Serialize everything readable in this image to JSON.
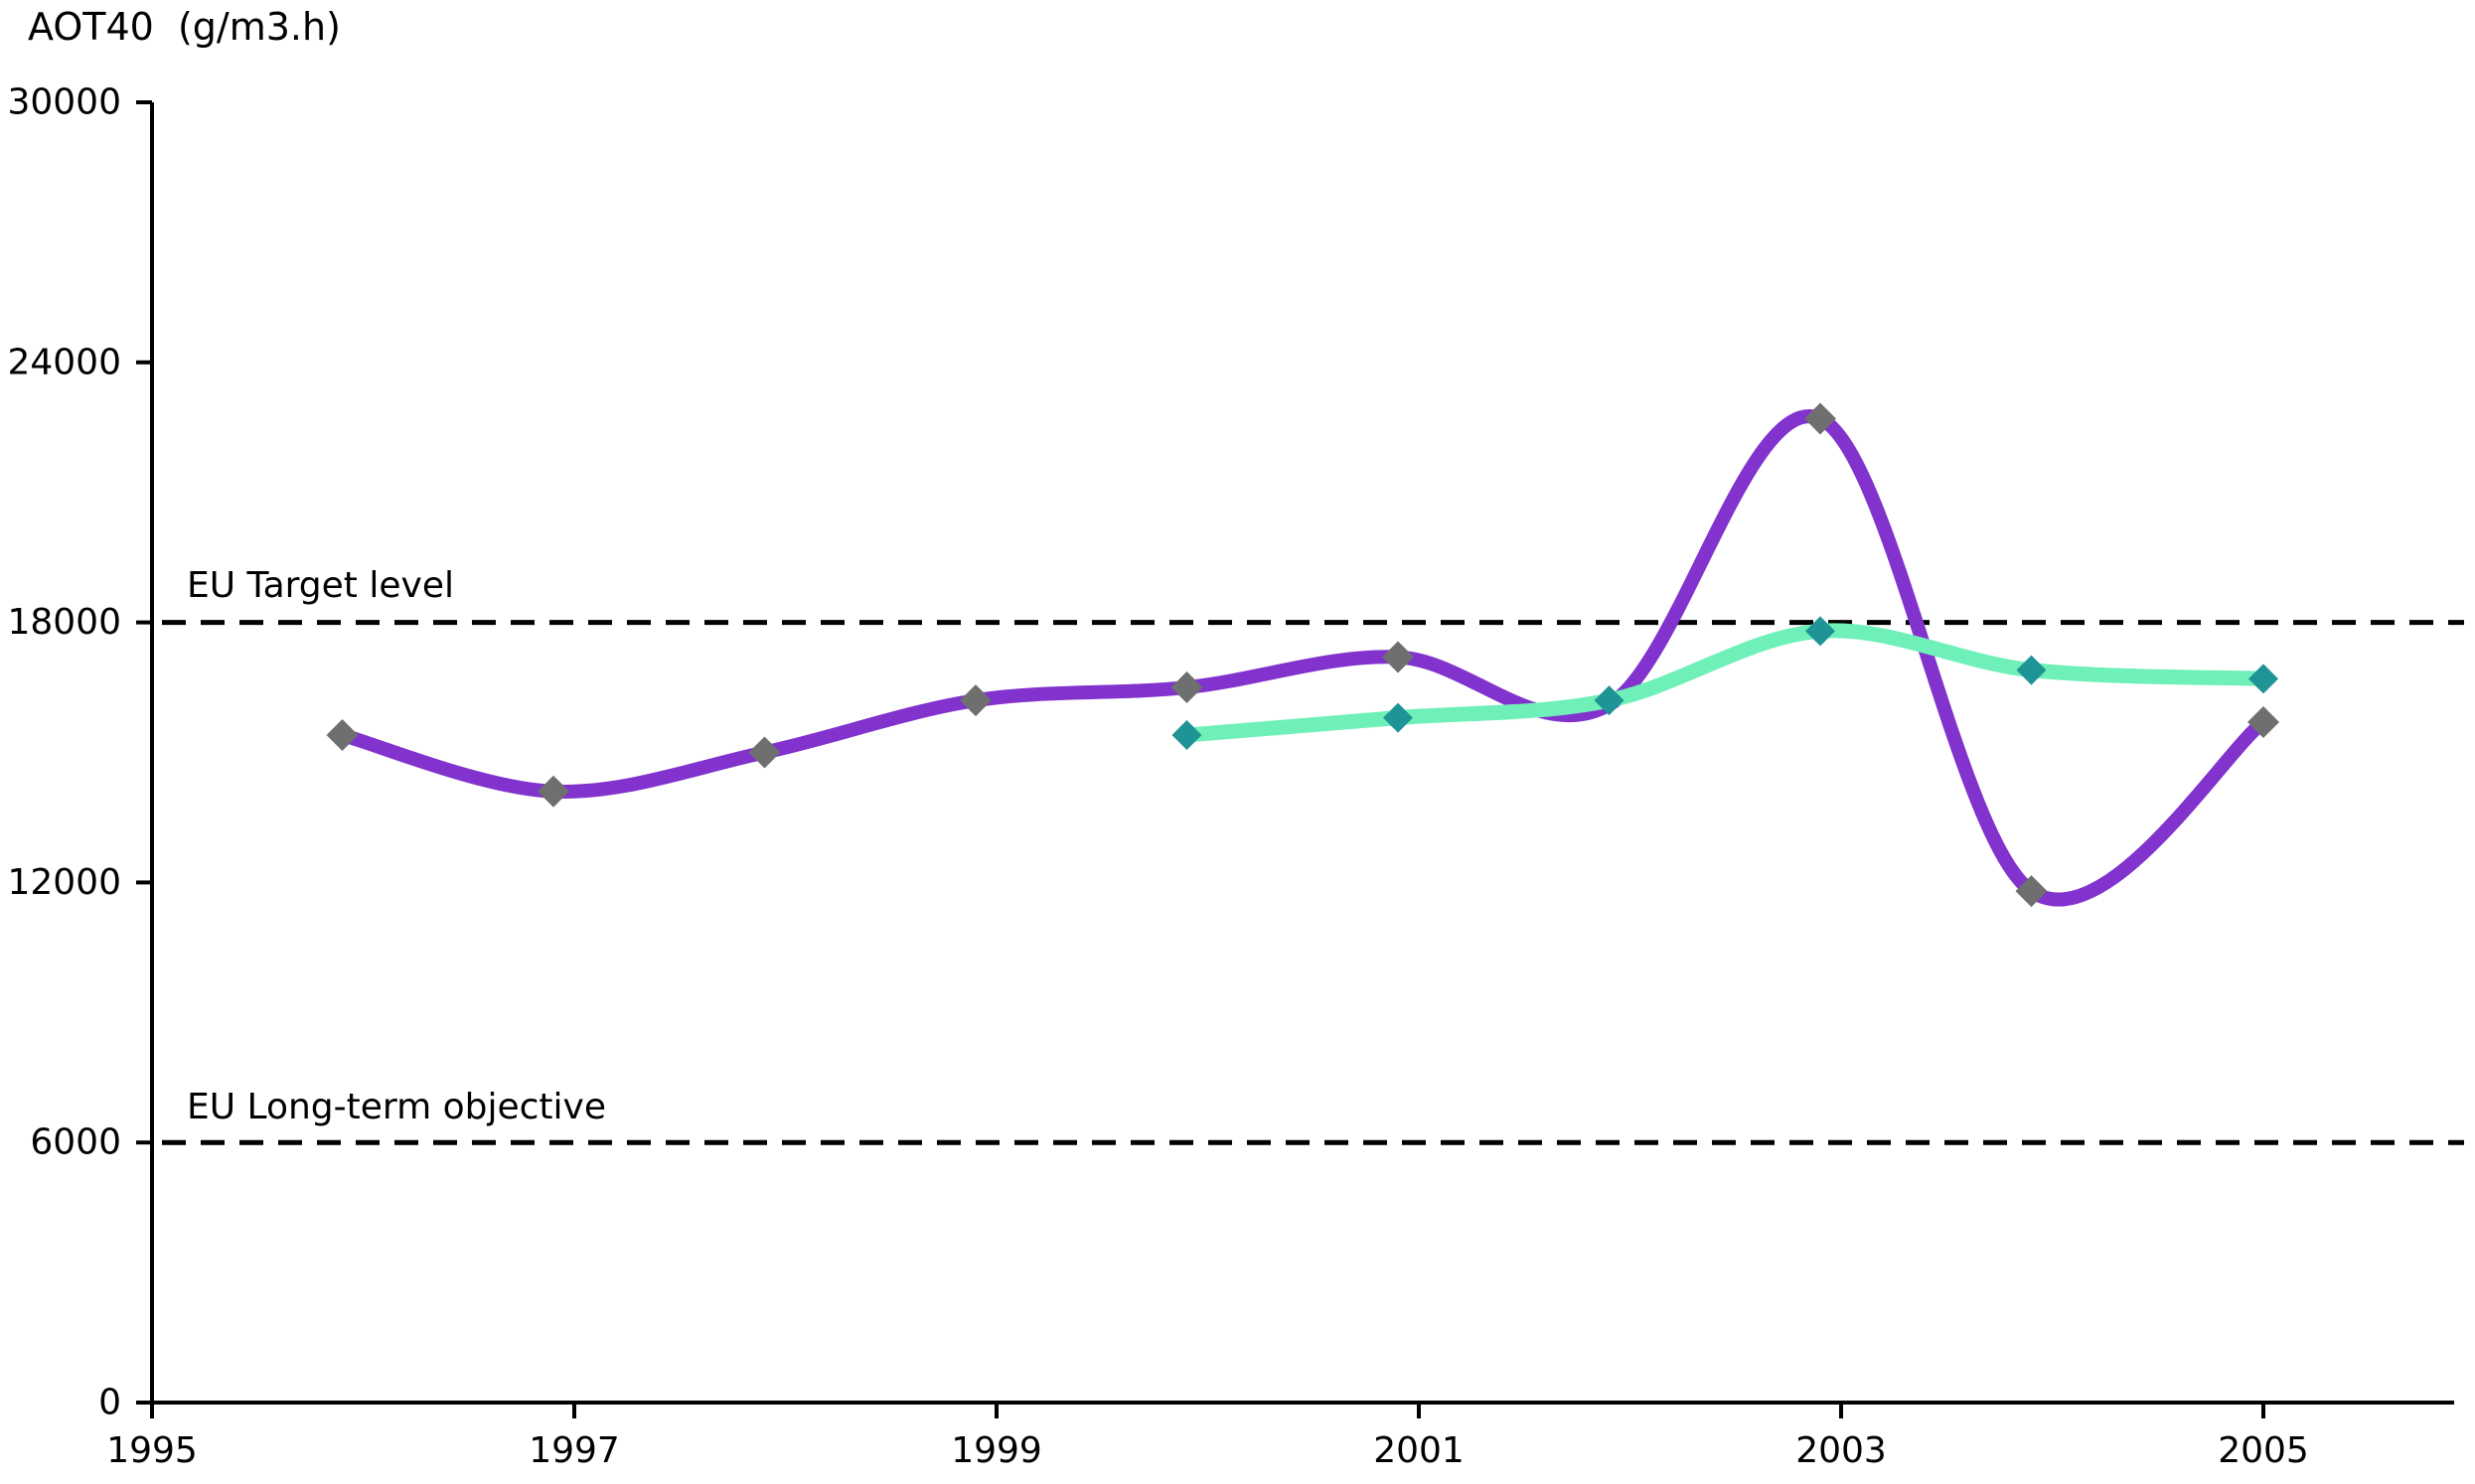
{
  "title": "AOT40  (g/m3.h)",
  "chart_data": {
    "type": "line",
    "title": "AOT40  (g/m3.h)",
    "grid": false,
    "legend": "none",
    "background_color": "#FFFFFF",
    "axis_color": "#000000",
    "y_axis": {
      "label": "AOT40  (g/m3.h)",
      "min": 0,
      "max": 30000,
      "ticks": [
        0,
        6000,
        12000,
        18000,
        24000,
        30000
      ]
    },
    "x_axis": {
      "min": 1995,
      "max": 2005.9,
      "ticks": [
        1995,
        1997,
        1999,
        2001,
        2003,
        2005
      ]
    },
    "reference_lines": [
      {
        "label": "EU Target level",
        "value": 18000,
        "line_style": "dashed",
        "color": "#000000"
      },
      {
        "label": "EU Long-term objective",
        "value": 6000,
        "line_style": "dashed",
        "color": "#000000"
      }
    ],
    "series": [
      {
        "name": "purple-series",
        "smoothed": true,
        "line_color": "#8232CD",
        "marker": "diamond",
        "marker_color": "#6F6F6F",
        "x": [
          1996,
          1997,
          1998,
          1999,
          2000,
          2001,
          2002,
          2003,
          2004,
          2005
        ],
        "values": [
          15400,
          14100,
          15000,
          16200,
          16500,
          17200,
          16100,
          22700,
          11800,
          15700
        ]
      },
      {
        "name": "green-series",
        "smoothed": true,
        "line_color": "#6EF0B8",
        "marker": "diamond",
        "marker_color": "#1E9496",
        "x": [
          2000,
          2001,
          2002,
          2003,
          2004,
          2005
        ],
        "values": [
          15400,
          15800,
          16200,
          17800,
          16900,
          16700
        ]
      }
    ]
  }
}
